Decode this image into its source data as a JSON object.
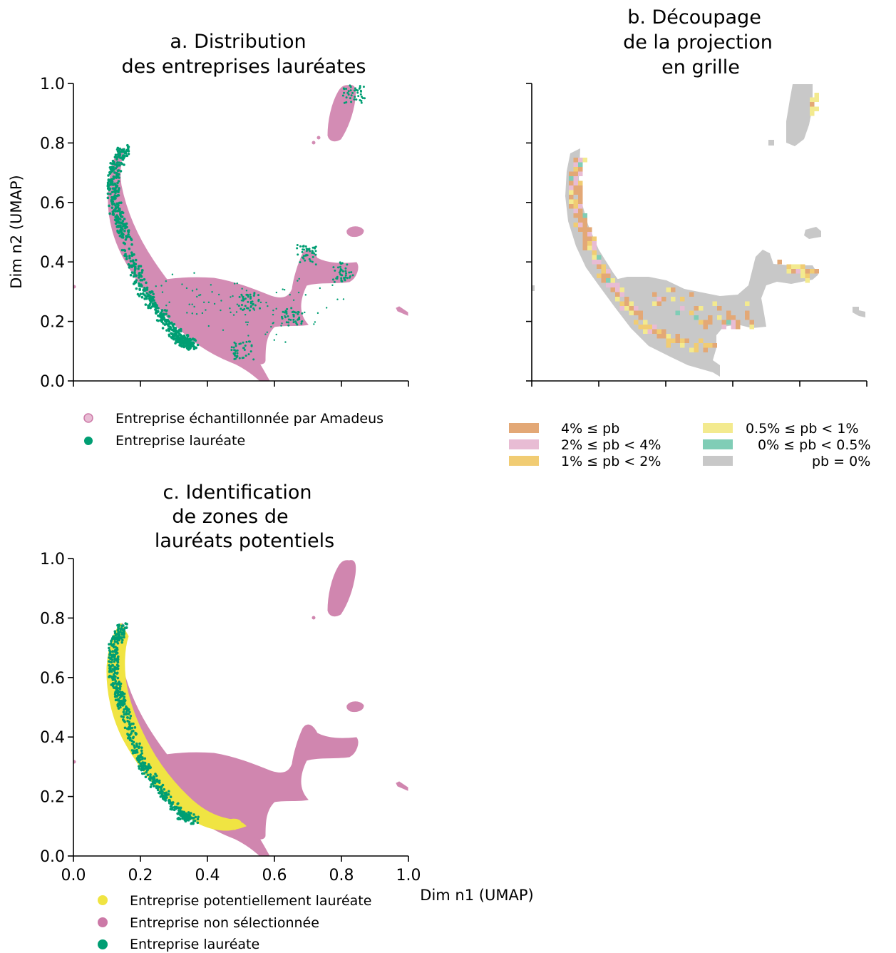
{
  "chart_data": [
    {
      "type": "scatter",
      "title": [
        "a. Distribution",
        "des entreprises lauréates"
      ],
      "xlabel": "",
      "ylabel": "Dim n2 (UMAP)",
      "xlim": [
        0,
        1
      ],
      "ylim": [
        0,
        1
      ],
      "yticks": [
        "0.0",
        "0.2",
        "0.4",
        "0.6",
        "0.8",
        "1.0"
      ],
      "xticks_labeled": false,
      "legend": [
        {
          "label": "Entreprise échantillonnée par Amadeus",
          "color": "#cc79a7"
        },
        {
          "label": "Entreprise lauréate",
          "color": "#009e73"
        }
      ],
      "series": [
        {
          "name": "Entreprise échantillonnée par Amadeus",
          "color": "#cc79a7",
          "regions": [
            {
              "shape": "arc",
              "points": [
                [
                  0.15,
                  0.78
                ],
                [
                  0.12,
                  0.7
                ],
                [
                  0.13,
                  0.6
                ],
                [
                  0.16,
                  0.5
                ],
                [
                  0.2,
                  0.4
                ],
                [
                  0.24,
                  0.32
                ],
                [
                  0.28,
                  0.24
                ],
                [
                  0.32,
                  0.18
                ],
                [
                  0.4,
                  0.12
                ],
                [
                  0.5,
                  0.08
                ],
                [
                  0.56,
                  0.02
                ]
              ]
            },
            {
              "shape": "blob",
              "points": [
                [
                  0.2,
                  0.35
                ],
                [
                  0.3,
                  0.34
                ],
                [
                  0.4,
                  0.32
                ],
                [
                  0.5,
                  0.3
                ],
                [
                  0.6,
                  0.28
                ],
                [
                  0.7,
                  0.24
                ],
                [
                  0.72,
                  0.4
                ],
                [
                  0.82,
                  0.37
                ],
                [
                  0.7,
                  0.2
                ],
                [
                  0.6,
                  0.18
                ],
                [
                  0.5,
                  0.1
                ]
              ]
            },
            {
              "shape": "cluster",
              "points": [
                [
                  0.83,
                  1.0
                ],
                [
                  0.82,
                  0.9
                ],
                [
                  0.8,
                  0.8
                ],
                [
                  0.83,
                  0.85
                ]
              ]
            },
            {
              "shape": "cluster",
              "points": [
                [
                  0.84,
                  0.5
                ],
                [
                  0.81,
                  0.51
                ]
              ]
            },
            {
              "shape": "cluster",
              "points": [
                [
                  0.97,
                  0.24
                ],
                [
                  1.0,
                  0.22
                ]
              ]
            }
          ]
        },
        {
          "name": "Entreprise lauréate",
          "color": "#009e73",
          "regions": [
            {
              "shape": "arc",
              "points": [
                [
                  0.15,
                  0.78
                ],
                [
                  0.12,
                  0.7
                ],
                [
                  0.12,
                  0.6
                ],
                [
                  0.15,
                  0.5
                ],
                [
                  0.2,
                  0.32
                ],
                [
                  0.26,
                  0.22
                ],
                [
                  0.32,
                  0.14
                ],
                [
                  0.36,
                  0.12
                ]
              ]
            },
            {
              "shape": "cluster",
              "points": [
                [
                  0.5,
                  0.11
                ],
                [
                  0.52,
                  0.27
                ],
                [
                  0.65,
                  0.22
                ],
                [
                  0.69,
                  0.43
                ],
                [
                  0.8,
                  0.37
                ],
                [
                  0.83,
                  0.97
                ]
              ]
            }
          ]
        }
      ]
    },
    {
      "type": "heatmap",
      "title": [
        "b. Découpage",
        "de la projection",
        "en grille"
      ],
      "xlim": [
        0,
        1
      ],
      "ylim": [
        0,
        1
      ],
      "ticks_labeled": false,
      "legend": [
        {
          "label": "4% ≤ pb",
          "color": "#e3a876"
        },
        {
          "label": "2% ≤ pb < 4%",
          "color": "#e8bcd4"
        },
        {
          "label": "1% ≤ pb < 2%",
          "color": "#f1cc73"
        },
        {
          "label": "0.5% ≤ pb < 1%",
          "color": "#f3ea8f"
        },
        {
          "label": "0% ≤ pb < 0.5%",
          "color": "#80cdb6"
        },
        {
          "label": "pb = 0%",
          "color": "#c8c8c8"
        }
      ]
    },
    {
      "type": "scatter",
      "title": [
        "c. Identification",
        "de zones de",
        "lauréats potentiels"
      ],
      "xlabel": "Dim n1 (UMAP)",
      "ylabel": "",
      "xlim": [
        0,
        1
      ],
      "ylim": [
        0,
        1
      ],
      "xticks": [
        "0.0",
        "0.2",
        "0.4",
        "0.6",
        "0.8",
        "1.0"
      ],
      "yticks": [
        "0.0",
        "0.2",
        "0.4",
        "0.6",
        "0.8",
        "1.0"
      ],
      "legend": [
        {
          "label": "Entreprise potentiellement lauréate",
          "color": "#f0e442"
        },
        {
          "label": "Entreprise non sélectionnée",
          "color": "#cc79a7"
        },
        {
          "label": "Entreprise lauréate",
          "color": "#009e73"
        }
      ],
      "series": [
        {
          "name": "Entreprise potentiellement lauréate",
          "color": "#f0e442",
          "regions": [
            {
              "shape": "arc",
              "points": [
                [
                  0.15,
                  0.78
                ],
                [
                  0.12,
                  0.7
                ],
                [
                  0.12,
                  0.6
                ],
                [
                  0.15,
                  0.5
                ],
                [
                  0.2,
                  0.32
                ],
                [
                  0.26,
                  0.22
                ],
                [
                  0.32,
                  0.14
                ],
                [
                  0.4,
                  0.12
                ],
                [
                  0.46,
                  0.12
                ]
              ]
            }
          ]
        }
      ]
    }
  ]
}
